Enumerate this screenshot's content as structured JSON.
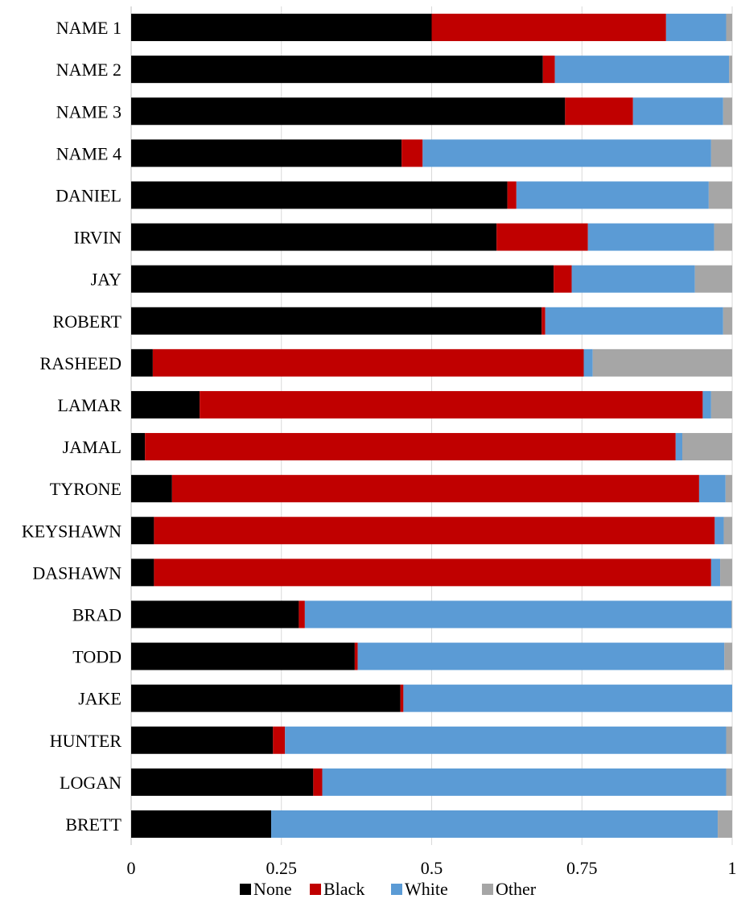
{
  "chart_data": {
    "type": "bar",
    "orientation": "horizontal",
    "stacked": true,
    "categories": [
      "NAME 1",
      "NAME 2",
      "NAME 3",
      "NAME 4",
      "DANIEL",
      "IRVIN",
      "JAY",
      "ROBERT",
      "RASHEED",
      "LAMAR",
      "JAMAL",
      "TYRONE",
      "KEYSHAWN",
      "DASHAWN",
      "BRAD",
      "TODD",
      "JAKE",
      "HUNTER",
      "LOGAN",
      "BRETT"
    ],
    "series": [
      {
        "name": "None",
        "color": "#000000",
        "values": [
          0.5,
          0.685,
          0.722,
          0.45,
          0.626,
          0.608,
          0.703,
          0.683,
          0.036,
          0.114,
          0.023,
          0.068,
          0.038,
          0.038,
          0.279,
          0.372,
          0.448,
          0.236,
          0.303,
          0.233
        ]
      },
      {
        "name": "Black",
        "color": "#c00000",
        "values": [
          0.39,
          0.02,
          0.113,
          0.035,
          0.015,
          0.152,
          0.03,
          0.006,
          0.717,
          0.837,
          0.883,
          0.877,
          0.933,
          0.927,
          0.01,
          0.005,
          0.005,
          0.02,
          0.015,
          0.0
        ]
      },
      {
        "name": "White",
        "color": "#5b9bd5",
        "values": [
          0.1,
          0.29,
          0.15,
          0.48,
          0.32,
          0.21,
          0.205,
          0.296,
          0.015,
          0.014,
          0.011,
          0.044,
          0.015,
          0.015,
          0.71,
          0.61,
          0.547,
          0.734,
          0.672,
          0.743
        ]
      },
      {
        "name": "Other",
        "color": "#a6a6a6",
        "values": [
          0.01,
          0.005,
          0.015,
          0.035,
          0.039,
          0.03,
          0.062,
          0.015,
          0.232,
          0.035,
          0.083,
          0.011,
          0.014,
          0.02,
          0.001,
          0.013,
          0.0,
          0.01,
          0.01,
          0.024
        ]
      }
    ],
    "xlim": [
      0,
      1
    ],
    "xticks": [
      "0",
      "0.25",
      "0.5",
      "0.75",
      "1"
    ],
    "xtick_values": [
      0,
      0.25,
      0.5,
      0.75,
      1
    ],
    "grid": "vertical",
    "legend": "bottom"
  }
}
